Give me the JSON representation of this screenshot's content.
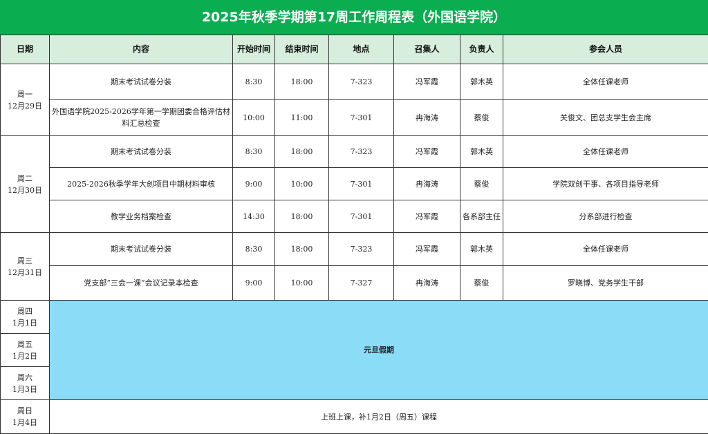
{
  "title": "2025年秋季学期第17周工作周程表（外国语学院）",
  "headers": [
    "日期",
    "内容",
    "开始时间",
    "结束时间",
    "地点",
    "召集人",
    "负责人",
    "参会人员"
  ],
  "days": [
    {
      "weekday": "周一",
      "date": "12月29日",
      "events": [
        {
          "content": "期末考试试卷分装",
          "start": "8:30",
          "end": "18:00",
          "place": "7-323",
          "convener": "冯军霞",
          "owner": "郭木英",
          "attendees": "全体任课老师"
        },
        {
          "content": "外国语学院2025-2026学年第一学期团委合格评估材料汇总检查",
          "start": "10:00",
          "end": "11:00",
          "place": "7-301",
          "convener": "冉海涛",
          "owner": "蔡俊",
          "attendees": "关俊文、团总支学生会主席"
        }
      ]
    },
    {
      "weekday": "周二",
      "date": "12月30日",
      "events": [
        {
          "content": "期末考试试卷分装",
          "start": "8:30",
          "end": "18:00",
          "place": "7-323",
          "convener": "冯军霞",
          "owner": "郭木英",
          "attendees": "全体任课老师"
        },
        {
          "content": "2025-2026秋季学年大创项目中期材料审核",
          "start": "9:00",
          "end": "10:00",
          "place": "7-301",
          "convener": "冉海涛",
          "owner": "蔡俊",
          "attendees": "学院双创干事、各项目指导老师"
        },
        {
          "content": "教学业务档案检查",
          "start": "14:30",
          "end": "18:00",
          "place": "7-301",
          "convener": "冯军霞",
          "owner": "各系部主任",
          "attendees": "分系部进行检查"
        }
      ]
    },
    {
      "weekday": "周三",
      "date": "12月31日",
      "events": [
        {
          "content": "期末考试试卷分装",
          "start": "8:30",
          "end": "18:00",
          "place": "7-323",
          "convener": "冯军霞",
          "owner": "郭木英",
          "attendees": "全体任课老师"
        },
        {
          "content": "党支部“三会一课”会议记录本检查",
          "start": "9:00",
          "end": "10:00",
          "place": "7-327",
          "convener": "冉海涛",
          "owner": "蔡俊",
          "attendees": "罗晓博、党务学生干部"
        }
      ]
    }
  ],
  "holiday": {
    "label": "元旦假期",
    "days": [
      {
        "weekday": "周四",
        "date": "1月1日"
      },
      {
        "weekday": "周五",
        "date": "1月2日"
      },
      {
        "weekday": "周六",
        "date": "1月3日"
      }
    ]
  },
  "sunday": {
    "weekday": "周日",
    "date": "1月4日",
    "note": "上班上课，补1月2日（周五）课程"
  },
  "colors": {
    "title_bg": "#0aad4f",
    "header_bg": "#d6eedb",
    "holiday_bg": "#8adcf7"
  }
}
